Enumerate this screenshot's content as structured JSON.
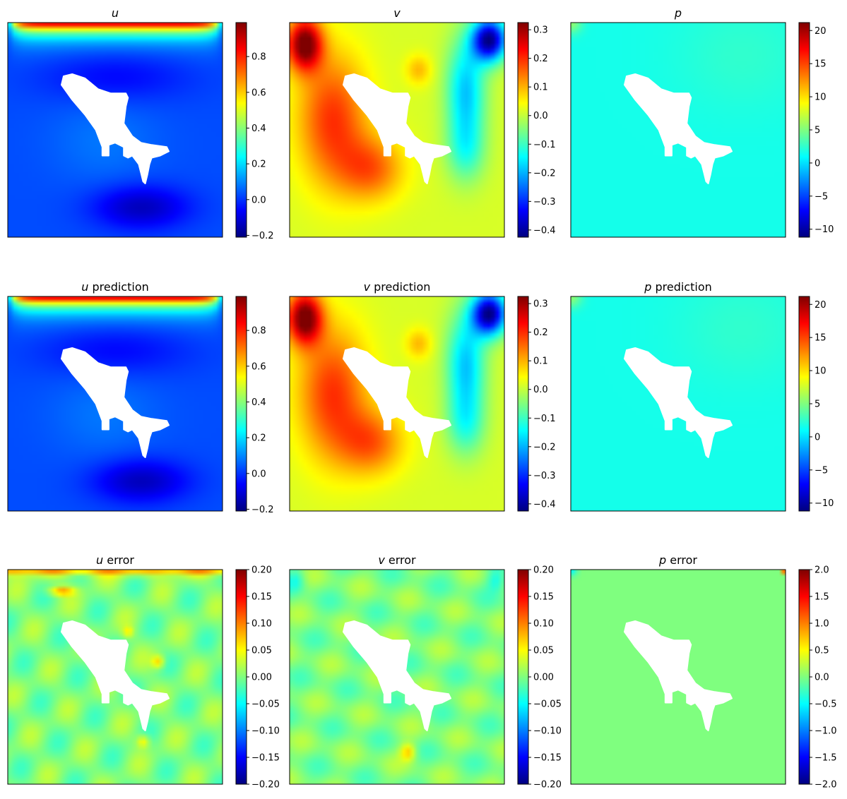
{
  "colors": {
    "jet": [
      "#00007f",
      "#0000ff",
      "#007fff",
      "#00ffff",
      "#7fff7f",
      "#ffff00",
      "#ff7f00",
      "#ff0000",
      "#7f0000"
    ],
    "background": "#ffffff",
    "shark": "#ffffff"
  },
  "chart_data": [
    {
      "type": "heatmap",
      "field": "u",
      "title_var": "u",
      "title_suffix": "",
      "grid": false,
      "cmap": "jet",
      "vmin": -0.21,
      "vmax": 0.99,
      "ticks": [
        -0.2,
        0.0,
        0.2,
        0.4,
        0.6,
        0.8
      ],
      "tick_labels": [
        "−0.2",
        "0.0",
        "0.2",
        "0.4",
        "0.6",
        "0.8"
      ]
    },
    {
      "type": "heatmap",
      "field": "v",
      "title_var": "v",
      "title_suffix": "",
      "grid": false,
      "cmap": "jet",
      "vmin": -0.425,
      "vmax": 0.325,
      "ticks": [
        -0.4,
        -0.3,
        -0.2,
        -0.1,
        0.0,
        0.1,
        0.2,
        0.3
      ],
      "tick_labels": [
        "−0.4",
        "−0.3",
        "−0.2",
        "−0.1",
        "0.0",
        "0.1",
        "0.2",
        "0.3"
      ]
    },
    {
      "type": "heatmap",
      "field": "p",
      "title_var": "p",
      "title_suffix": "",
      "grid": false,
      "cmap": "jet",
      "vmin": -11.2,
      "vmax": 21.2,
      "ticks": [
        -10,
        -5,
        0,
        5,
        10,
        15,
        20
      ],
      "tick_labels": [
        "−10",
        "−5",
        "0",
        "5",
        "10",
        "15",
        "20"
      ]
    },
    {
      "type": "heatmap",
      "field": "u",
      "title_var": "u",
      "title_suffix": " prediction",
      "grid": false,
      "cmap": "jet",
      "vmin": -0.21,
      "vmax": 0.99,
      "ticks": [
        -0.2,
        0.0,
        0.2,
        0.4,
        0.6,
        0.8
      ],
      "tick_labels": [
        "−0.2",
        "0.0",
        "0.2",
        "0.4",
        "0.6",
        "0.8"
      ]
    },
    {
      "type": "heatmap",
      "field": "v",
      "title_var": "v",
      "title_suffix": " prediction",
      "grid": false,
      "cmap": "jet",
      "vmin": -0.425,
      "vmax": 0.325,
      "ticks": [
        -0.4,
        -0.3,
        -0.2,
        -0.1,
        0.0,
        0.1,
        0.2,
        0.3
      ],
      "tick_labels": [
        "−0.4",
        "−0.3",
        "−0.2",
        "−0.1",
        "0.0",
        "0.1",
        "0.2",
        "0.3"
      ]
    },
    {
      "type": "heatmap",
      "field": "p",
      "title_var": "p",
      "title_suffix": " prediction",
      "grid": false,
      "cmap": "jet",
      "vmin": -11.2,
      "vmax": 21.2,
      "ticks": [
        -10,
        -5,
        0,
        5,
        10,
        15,
        20
      ],
      "tick_labels": [
        "−10",
        "−5",
        "0",
        "5",
        "10",
        "15",
        "20"
      ]
    },
    {
      "type": "heatmap",
      "field": "u_err",
      "title_var": "u",
      "title_suffix": " error",
      "grid": false,
      "cmap": "jet",
      "vmin": -0.2,
      "vmax": 0.2,
      "ticks": [
        -0.2,
        -0.15,
        -0.1,
        -0.05,
        0.0,
        0.05,
        0.1,
        0.15,
        0.2
      ],
      "tick_labels": [
        "−0.20",
        "−0.15",
        "−0.10",
        "−0.05",
        "0.00",
        "0.05",
        "0.10",
        "0.15",
        "0.20"
      ]
    },
    {
      "type": "heatmap",
      "field": "v_err",
      "title_var": "v",
      "title_suffix": " error",
      "grid": false,
      "cmap": "jet",
      "vmin": -0.2,
      "vmax": 0.2,
      "ticks": [
        -0.2,
        -0.15,
        -0.1,
        -0.05,
        0.0,
        0.05,
        0.1,
        0.15,
        0.2
      ],
      "tick_labels": [
        "−0.20",
        "−0.15",
        "−0.10",
        "−0.05",
        "0.00",
        "0.05",
        "0.10",
        "0.15",
        "0.20"
      ]
    },
    {
      "type": "heatmap",
      "field": "p_err",
      "title_var": "p",
      "title_suffix": " error",
      "grid": false,
      "cmap": "jet",
      "vmin": -2.0,
      "vmax": 2.0,
      "ticks": [
        -2.0,
        -1.5,
        -1.0,
        -0.5,
        0.0,
        0.5,
        1.0,
        1.5,
        2.0
      ],
      "tick_labels": [
        "−2.0",
        "−1.5",
        "−1.0",
        "−0.5",
        "0.0",
        "0.5",
        "1.0",
        "1.5",
        "2.0"
      ]
    }
  ]
}
